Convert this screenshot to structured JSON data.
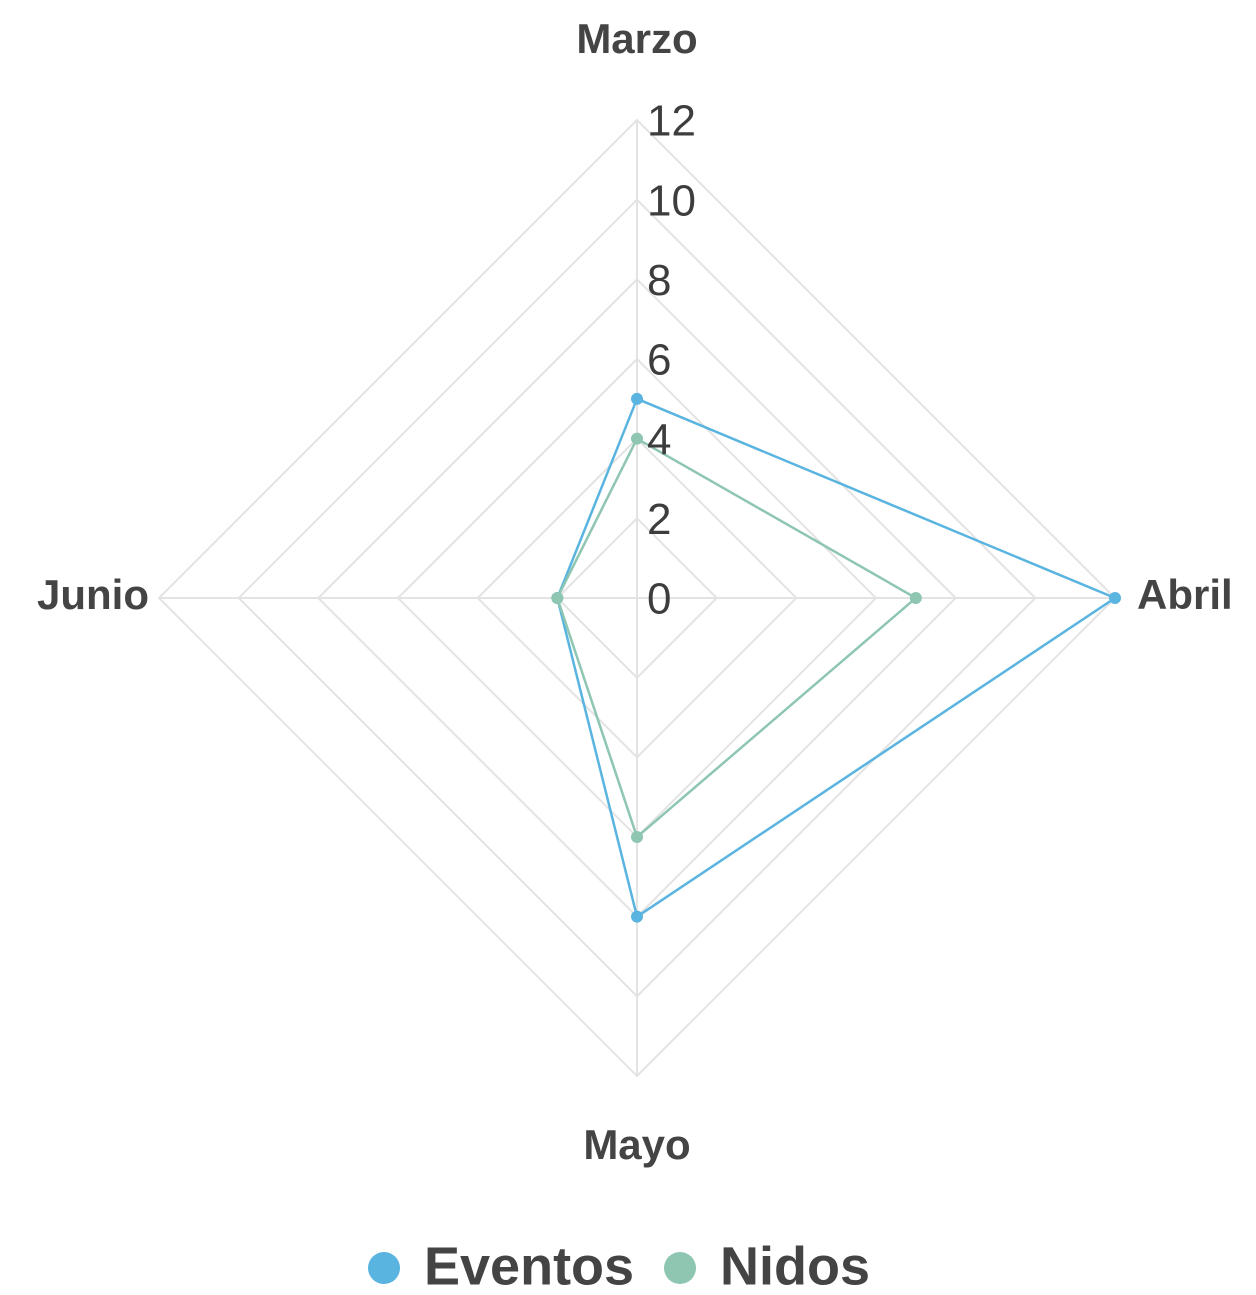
{
  "chart_data": {
    "type": "radar",
    "categories": [
      "Marzo",
      "Abril",
      "Mayo",
      "Junio"
    ],
    "series": [
      {
        "name": "Eventos",
        "color": "#5ab4e0",
        "values": [
          5,
          12,
          8,
          2
        ]
      },
      {
        "name": "Nidos",
        "color": "#8ec6b1",
        "values": [
          4,
          7,
          6,
          2
        ]
      }
    ],
    "rlim": [
      0,
      12
    ],
    "rticks": [
      0,
      2,
      4,
      6,
      8,
      10,
      12
    ],
    "grid": true,
    "legend": "bottom"
  }
}
